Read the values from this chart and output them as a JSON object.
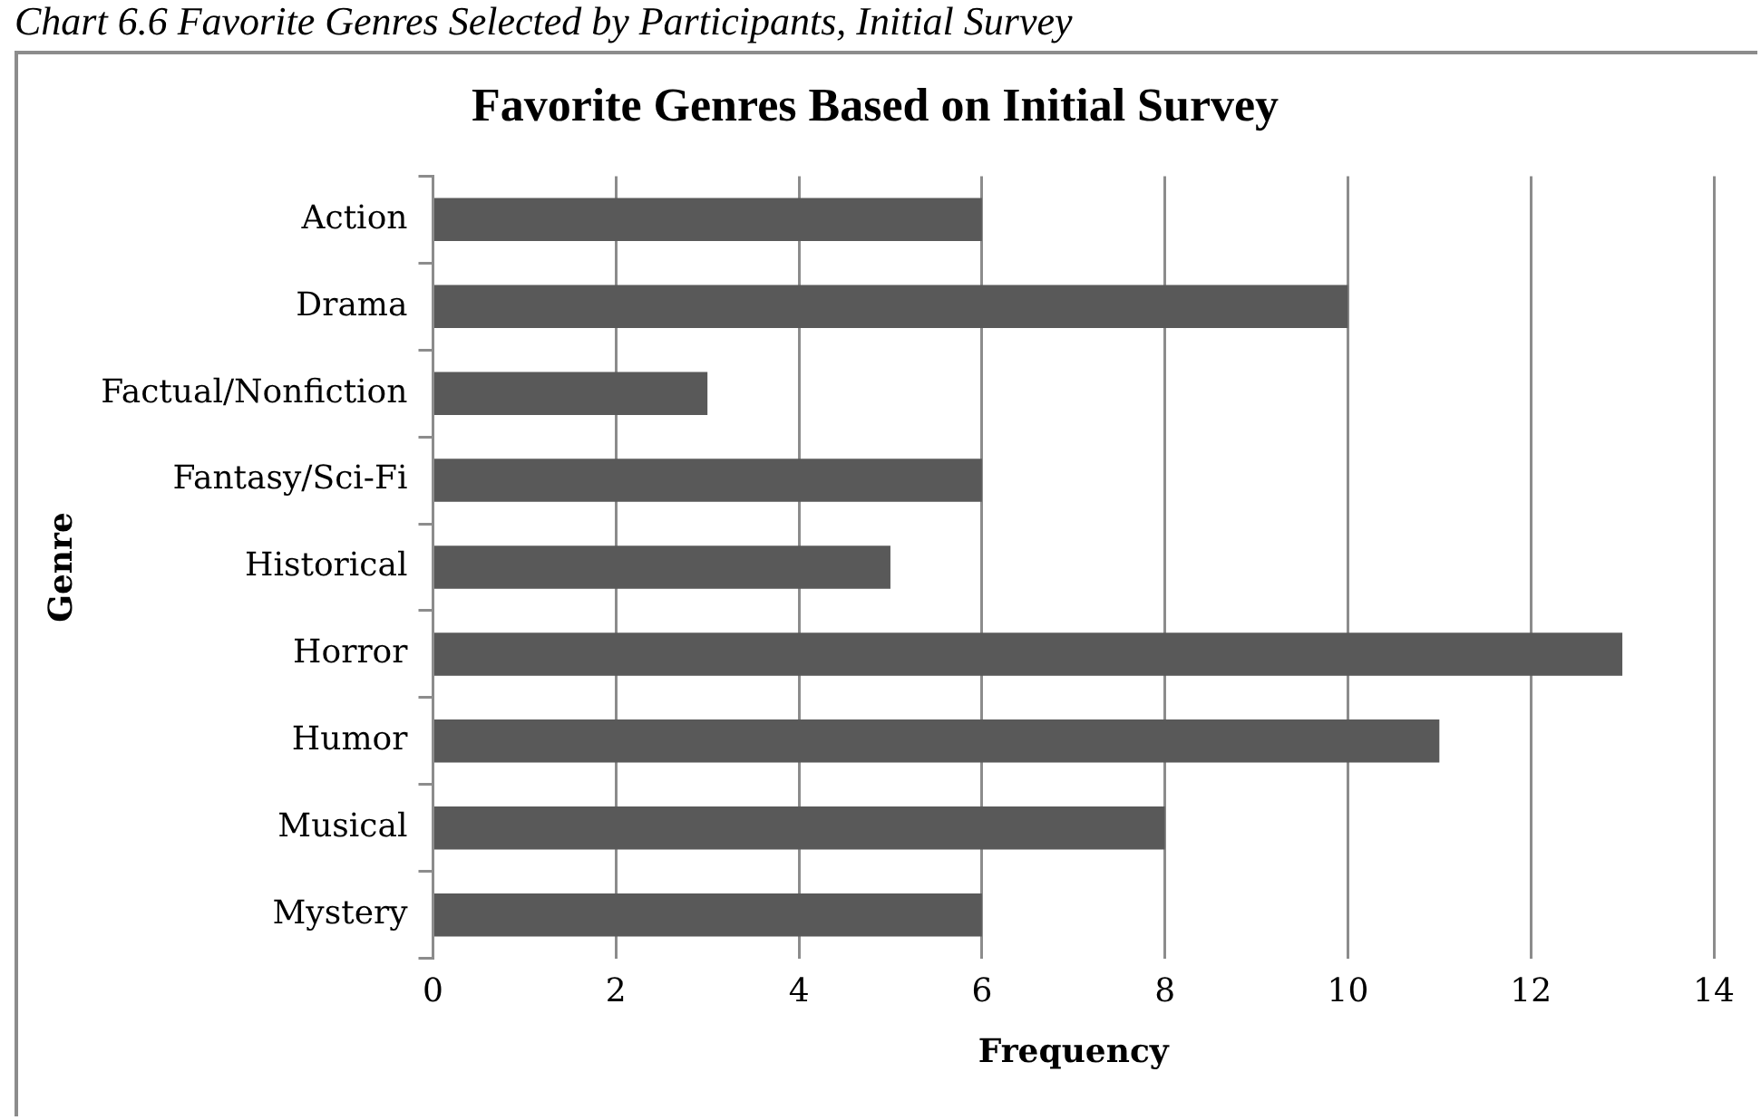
{
  "chart_data": {
    "type": "bar",
    "orientation": "horizontal",
    "title": "Favorite Genres Based on Initial Survey",
    "xlabel": "Frequency",
    "ylabel": "Genre",
    "annotations": [
      "Chart 6.6 Favorite Genres Selected by Participants, Initial Survey"
    ],
    "categories": [
      "Action",
      "Drama",
      "Factual/Nonfiction",
      "Fantasy/Sci-Fi",
      "Historical",
      "Horror",
      "Humor",
      "Musical",
      "Mystery"
    ],
    "values": [
      6,
      10,
      3,
      6,
      5,
      13,
      11,
      8,
      6
    ],
    "color": "#595959",
    "xlim": [
      0,
      14
    ],
    "xticks": [
      0,
      2,
      4,
      6,
      8,
      10,
      12,
      14
    ],
    "grid": "x",
    "legend": false
  }
}
